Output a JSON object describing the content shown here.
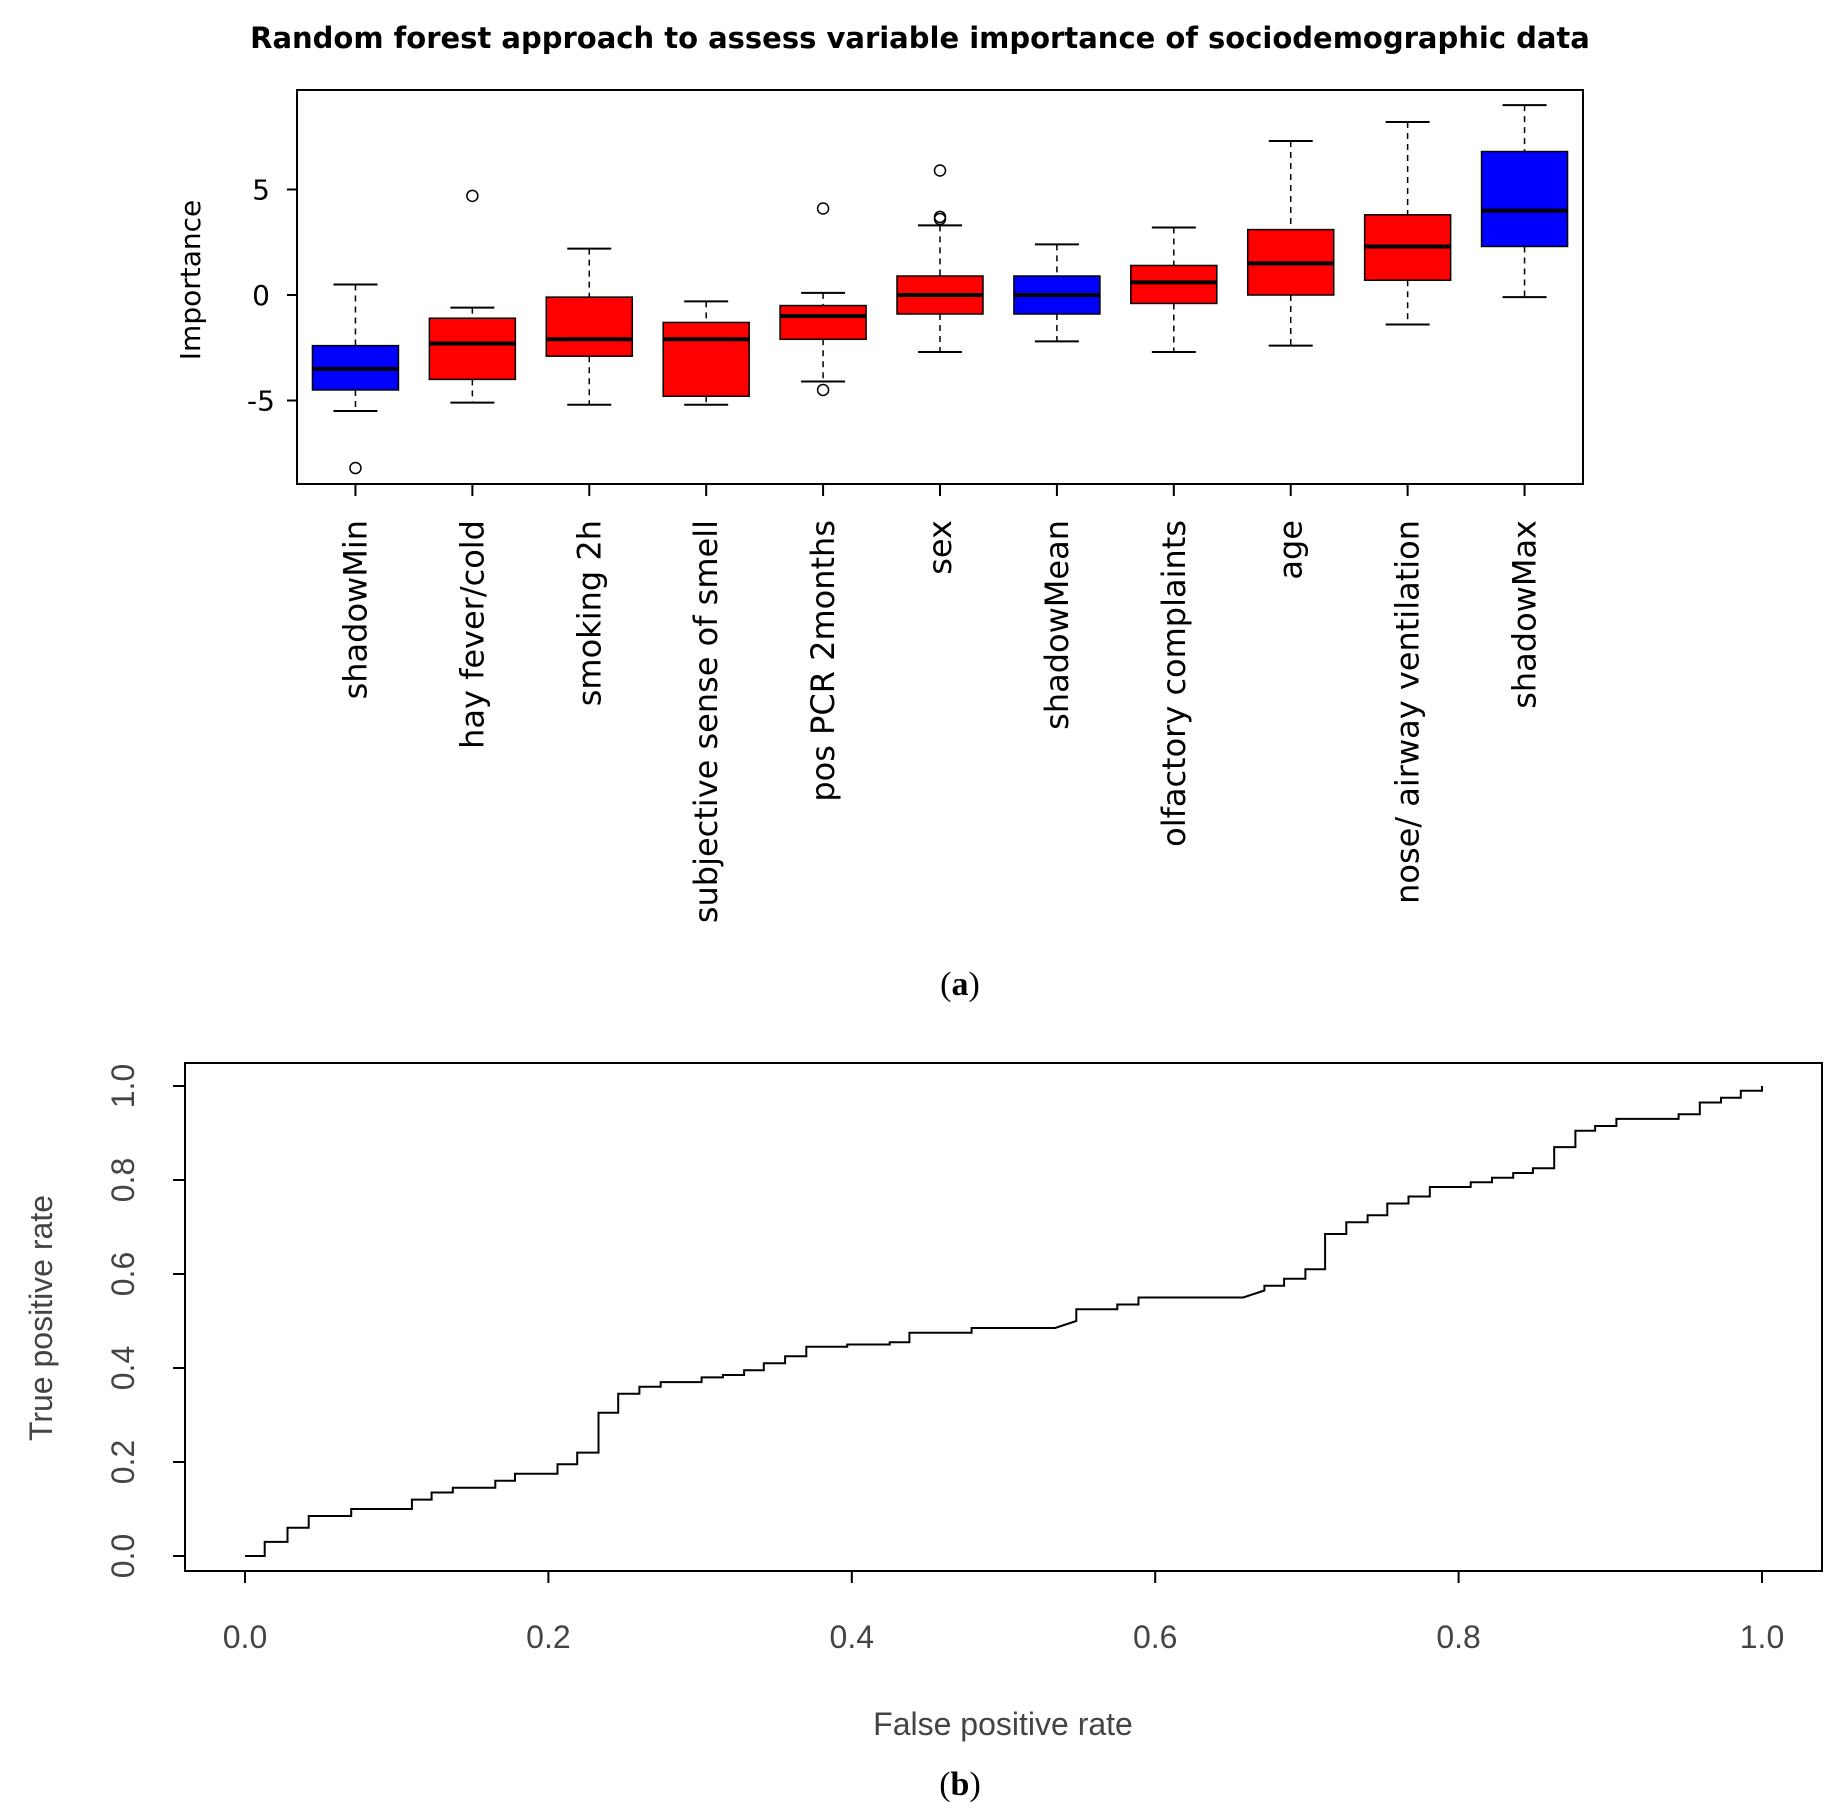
{
  "chart_data": [
    {
      "type": "box",
      "title": "Random forest approach to assess variable importance of sociodemographic data",
      "xlabel": "",
      "ylabel": "Importance",
      "ylim": [
        -8.7,
        10
      ],
      "yticks": [
        -5,
        0,
        5
      ],
      "caption_letter": "a",
      "colors": {
        "shadow": "#0000ff",
        "variable": "#ff0000"
      },
      "categories": [
        "shadowMin",
        "hay fever/cold",
        "smoking 2h",
        "subjective sense of smell",
        "pos PCR 2months",
        "sex",
        "shadowMean",
        "olfactory complaints",
        "age",
        "nose/ airway ventilation",
        "shadowMax"
      ],
      "boxes": [
        {
          "name": "shadowMin",
          "kind": "shadow",
          "min": -5.5,
          "q1": -4.5,
          "median": -3.5,
          "q3": -2.4,
          "max": 0.5,
          "outliers": [
            -8.2
          ]
        },
        {
          "name": "hay fever/cold",
          "kind": "variable",
          "min": -5.1,
          "q1": -4.0,
          "median": -2.3,
          "q3": -1.1,
          "max": -0.6,
          "outliers": [
            4.7
          ]
        },
        {
          "name": "smoking 2h",
          "kind": "variable",
          "min": -5.2,
          "q1": -2.9,
          "median": -2.1,
          "q3": -0.1,
          "max": 2.2,
          "outliers": []
        },
        {
          "name": "subjective sense of smell",
          "kind": "variable",
          "min": -5.2,
          "q1": -4.8,
          "median": -2.1,
          "q3": -1.3,
          "max": -0.3,
          "outliers": []
        },
        {
          "name": "pos PCR 2months",
          "kind": "variable",
          "min": -4.1,
          "q1": -2.1,
          "median": -1.0,
          "q3": -0.5,
          "max": 0.1,
          "outliers": [
            4.1,
            -4.5
          ]
        },
        {
          "name": "sex",
          "kind": "variable",
          "min": -2.7,
          "q1": -0.9,
          "median": 0.0,
          "q3": 0.9,
          "max": 3.3,
          "outliers": [
            5.9,
            3.7,
            3.6
          ]
        },
        {
          "name": "shadowMean",
          "kind": "shadow",
          "min": -2.2,
          "q1": -0.9,
          "median": 0.0,
          "q3": 0.9,
          "max": 2.4,
          "outliers": []
        },
        {
          "name": "olfactory complaints",
          "kind": "variable",
          "min": -2.7,
          "q1": -0.4,
          "median": 0.6,
          "q3": 1.4,
          "max": 3.2,
          "outliers": []
        },
        {
          "name": "age",
          "kind": "variable",
          "min": -2.4,
          "q1": 0.0,
          "median": 1.5,
          "q3": 3.1,
          "max": 7.3,
          "outliers": []
        },
        {
          "name": "nose/ airway ventilation",
          "kind": "variable",
          "min": -1.4,
          "q1": 0.7,
          "median": 2.3,
          "q3": 3.8,
          "max": 8.2,
          "outliers": []
        },
        {
          "name": "shadowMax",
          "kind": "shadow",
          "min": -0.1,
          "q1": 2.3,
          "median": 4.0,
          "q3": 6.8,
          "max": 9.0,
          "outliers": []
        }
      ]
    },
    {
      "type": "line",
      "title": "",
      "xlabel": "False positive rate",
      "ylabel": "True positive rate",
      "xlim": [
        0,
        1
      ],
      "ylim": [
        0,
        1
      ],
      "xticks": [
        "0.0",
        "0.2",
        "0.4",
        "0.6",
        "0.8",
        "1.0"
      ],
      "yticks": [
        "0.0",
        "0.2",
        "0.4",
        "0.6",
        "0.8",
        "1.0"
      ],
      "caption_letter": "b",
      "step_points": [
        [
          0.0,
          0.0
        ],
        [
          0.013,
          0.0
        ],
        [
          0.013,
          0.03
        ],
        [
          0.028,
          0.03
        ],
        [
          0.028,
          0.06
        ],
        [
          0.042,
          0.06
        ],
        [
          0.042,
          0.085
        ],
        [
          0.07,
          0.085
        ],
        [
          0.07,
          0.1
        ],
        [
          0.11,
          0.1
        ],
        [
          0.11,
          0.12
        ],
        [
          0.123,
          0.12
        ],
        [
          0.123,
          0.135
        ],
        [
          0.137,
          0.135
        ],
        [
          0.137,
          0.145
        ],
        [
          0.165,
          0.145
        ],
        [
          0.165,
          0.16
        ],
        [
          0.178,
          0.16
        ],
        [
          0.178,
          0.175
        ],
        [
          0.206,
          0.175
        ],
        [
          0.206,
          0.195
        ],
        [
          0.219,
          0.195
        ],
        [
          0.219,
          0.22
        ],
        [
          0.233,
          0.22
        ],
        [
          0.233,
          0.305
        ],
        [
          0.246,
          0.305
        ],
        [
          0.246,
          0.345
        ],
        [
          0.26,
          0.345
        ],
        [
          0.26,
          0.36
        ],
        [
          0.274,
          0.36
        ],
        [
          0.274,
          0.37
        ],
        [
          0.301,
          0.37
        ],
        [
          0.301,
          0.38
        ],
        [
          0.315,
          0.38
        ],
        [
          0.315,
          0.385
        ],
        [
          0.329,
          0.385
        ],
        [
          0.329,
          0.395
        ],
        [
          0.342,
          0.395
        ],
        [
          0.342,
          0.41
        ],
        [
          0.356,
          0.41
        ],
        [
          0.356,
          0.425
        ],
        [
          0.37,
          0.425
        ],
        [
          0.37,
          0.445
        ],
        [
          0.397,
          0.445
        ],
        [
          0.397,
          0.45
        ],
        [
          0.425,
          0.45
        ],
        [
          0.425,
          0.455
        ],
        [
          0.438,
          0.455
        ],
        [
          0.438,
          0.475
        ],
        [
          0.479,
          0.475
        ],
        [
          0.479,
          0.485
        ],
        [
          0.534,
          0.485
        ],
        [
          0.548,
          0.5
        ],
        [
          0.548,
          0.525
        ],
        [
          0.575,
          0.525
        ],
        [
          0.575,
          0.535
        ],
        [
          0.589,
          0.535
        ],
        [
          0.589,
          0.55
        ],
        [
          0.658,
          0.55
        ],
        [
          0.672,
          0.565
        ],
        [
          0.672,
          0.575
        ],
        [
          0.685,
          0.575
        ],
        [
          0.685,
          0.59
        ],
        [
          0.699,
          0.59
        ],
        [
          0.699,
          0.61
        ],
        [
          0.712,
          0.61
        ],
        [
          0.712,
          0.685
        ],
        [
          0.726,
          0.685
        ],
        [
          0.726,
          0.71
        ],
        [
          0.74,
          0.71
        ],
        [
          0.74,
          0.725
        ],
        [
          0.753,
          0.725
        ],
        [
          0.753,
          0.75
        ],
        [
          0.767,
          0.75
        ],
        [
          0.767,
          0.765
        ],
        [
          0.781,
          0.765
        ],
        [
          0.781,
          0.785
        ],
        [
          0.808,
          0.785
        ],
        [
          0.808,
          0.795
        ],
        [
          0.822,
          0.795
        ],
        [
          0.822,
          0.805
        ],
        [
          0.836,
          0.805
        ],
        [
          0.836,
          0.815
        ],
        [
          0.849,
          0.815
        ],
        [
          0.849,
          0.825
        ],
        [
          0.863,
          0.825
        ],
        [
          0.863,
          0.87
        ],
        [
          0.877,
          0.87
        ],
        [
          0.877,
          0.905
        ],
        [
          0.89,
          0.905
        ],
        [
          0.89,
          0.915
        ],
        [
          0.904,
          0.915
        ],
        [
          0.904,
          0.93
        ],
        [
          0.945,
          0.93
        ],
        [
          0.945,
          0.94
        ],
        [
          0.959,
          0.94
        ],
        [
          0.959,
          0.965
        ],
        [
          0.973,
          0.965
        ],
        [
          0.973,
          0.975
        ],
        [
          0.986,
          0.975
        ],
        [
          0.986,
          0.99
        ],
        [
          1.0,
          0.99
        ],
        [
          1.0,
          1.0
        ]
      ]
    }
  ]
}
